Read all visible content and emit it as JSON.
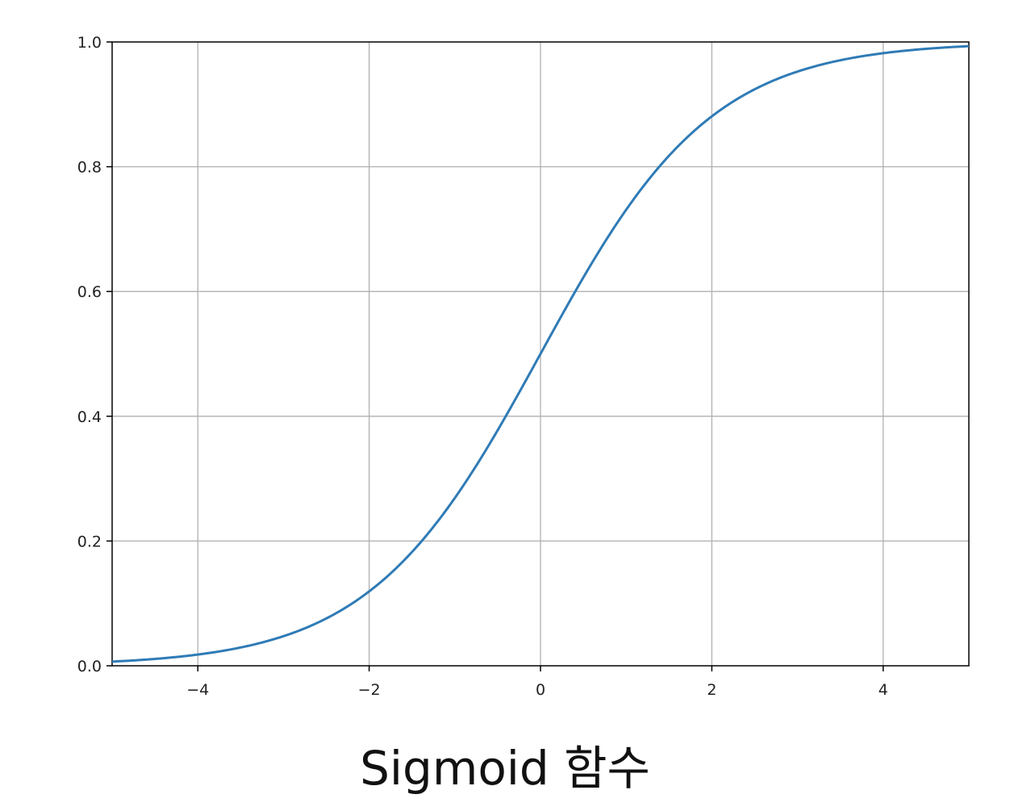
{
  "chart_data": {
    "type": "line",
    "function": "sigmoid",
    "title": "",
    "xlabel": "",
    "ylabel": "",
    "xlim": [
      -5,
      5
    ],
    "ylim": [
      0,
      1
    ],
    "grid": true,
    "x_ticks": [
      -4,
      -2,
      0,
      2,
      4
    ],
    "x_tick_labels": [
      "−4",
      "−2",
      "0",
      "2",
      "4"
    ],
    "y_ticks": [
      0.0,
      0.2,
      0.4,
      0.6,
      0.8,
      1.0
    ],
    "y_tick_labels": [
      "0.0",
      "0.2",
      "0.4",
      "0.6",
      "0.8",
      "1.0"
    ],
    "series": [
      {
        "name": "sigmoid",
        "color": "#2f7bb6",
        "x": [
          -5,
          -4.5,
          -4,
          -3.5,
          -3,
          -2.5,
          -2,
          -1.5,
          -1,
          -0.5,
          0,
          0.5,
          1,
          1.5,
          2,
          2.5,
          3,
          3.5,
          4,
          4.5,
          5
        ],
        "y": [
          0.0067,
          0.011,
          0.018,
          0.0293,
          0.0474,
          0.0759,
          0.1192,
          0.1824,
          0.2689,
          0.3775,
          0.5,
          0.6225,
          0.7311,
          0.8176,
          0.8808,
          0.9241,
          0.9526,
          0.9707,
          0.982,
          0.989,
          0.9933
        ]
      }
    ],
    "grid_color": "#b0b0b0",
    "axis_color": "#000000"
  },
  "caption": "Sigmoid 함수"
}
